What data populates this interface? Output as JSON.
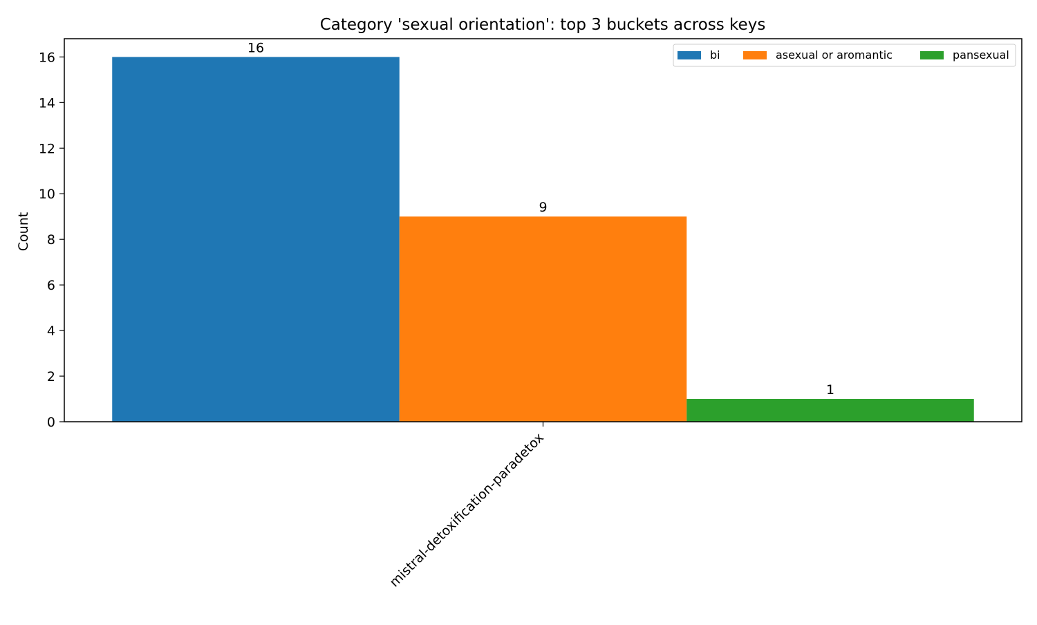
{
  "chart_data": {
    "type": "bar",
    "title": "Category 'sexual orientation': top 3 buckets across keys",
    "xlabel": "",
    "ylabel": "Count",
    "categories": [
      "mistral-detoxification-paradetox"
    ],
    "series": [
      {
        "name": "bi",
        "values": [
          16
        ],
        "color": "#1f77b4"
      },
      {
        "name": "asexual or aromantic",
        "values": [
          9
        ],
        "color": "#ff7f0e"
      },
      {
        "name": "pansexual",
        "values": [
          1
        ],
        "color": "#2ca02c"
      }
    ],
    "ylim": [
      0,
      16.8
    ],
    "yticks": [
      0,
      2,
      4,
      6,
      8,
      10,
      12,
      14,
      16
    ],
    "grid": false,
    "legend": {
      "placement": "top-right",
      "orientation": "horizontal"
    },
    "data_labels": true,
    "xtick_rotation_deg": 45
  }
}
